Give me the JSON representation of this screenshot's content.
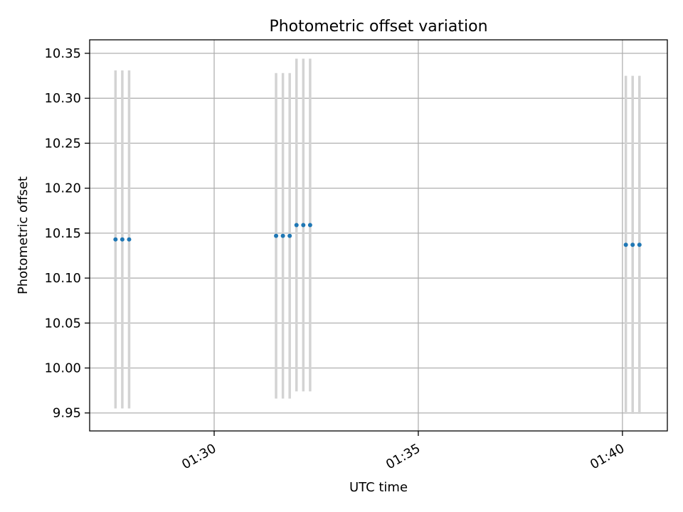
{
  "chart_data": {
    "type": "scatter",
    "title": "Photometric offset variation",
    "xlabel": "UTC time",
    "ylabel": "Photometric offset",
    "xlim": [
      "01:26:57",
      "01:41:06"
    ],
    "ylim": [
      9.93,
      10.365
    ],
    "x_ticks": [
      "01:30",
      "01:35",
      "01:40"
    ],
    "y_ticks": [
      "9.95",
      "10.00",
      "10.05",
      "10.10",
      "10.15",
      "10.20",
      "10.25",
      "10.30",
      "10.35"
    ],
    "grid": true,
    "colors": {
      "point": "#1f77b4",
      "errorbar": "#d3d3d3",
      "grid": "#b0b0b0",
      "axes": "#000000"
    },
    "series": [
      {
        "points": [
          {
            "x": "01:27:35",
            "y": 10.143,
            "err": 0.188
          },
          {
            "x": "01:27:45",
            "y": 10.143,
            "err": 0.188
          },
          {
            "x": "01:27:55",
            "y": 10.143,
            "err": 0.188
          },
          {
            "x": "01:31:31",
            "y": 10.147,
            "err": 0.181
          },
          {
            "x": "01:31:41",
            "y": 10.147,
            "err": 0.181
          },
          {
            "x": "01:31:51",
            "y": 10.147,
            "err": 0.181
          },
          {
            "x": "01:32:01",
            "y": 10.159,
            "err": 0.185
          },
          {
            "x": "01:32:11",
            "y": 10.159,
            "err": 0.185
          },
          {
            "x": "01:32:21",
            "y": 10.159,
            "err": 0.185
          },
          {
            "x": "01:40:05",
            "y": 10.137,
            "err": 0.188
          },
          {
            "x": "01:40:15",
            "y": 10.137,
            "err": 0.188
          },
          {
            "x": "01:40:25",
            "y": 10.137,
            "err": 0.188
          }
        ]
      }
    ]
  }
}
